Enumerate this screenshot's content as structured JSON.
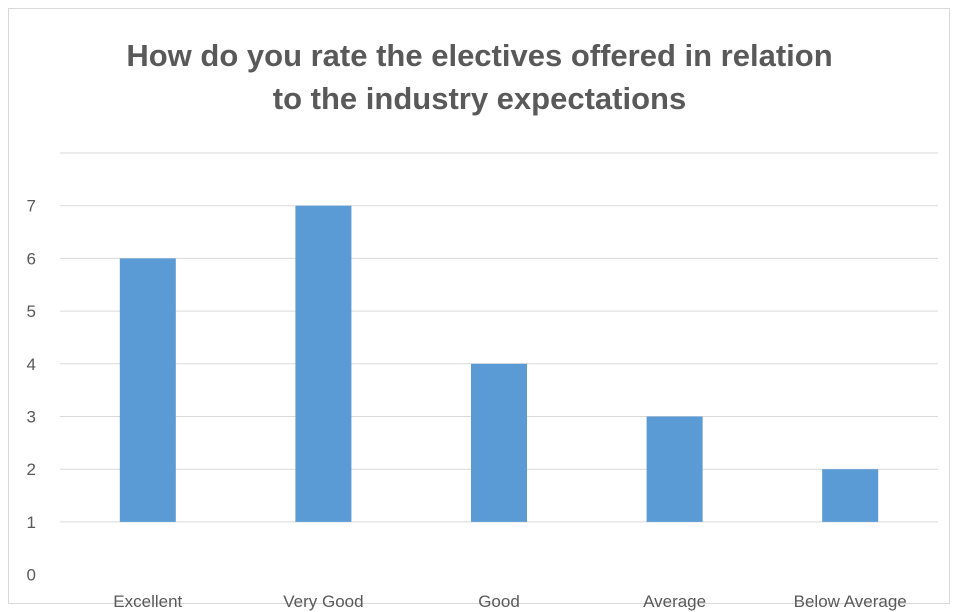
{
  "chart_data": {
    "type": "bar",
    "title": "How do you rate the electives offered in relation to the industry expectations",
    "title_lines": [
      "How do you rate the electives offered in relation",
      "to the industry expectations"
    ],
    "categories": [
      "Excellent",
      "Very Good",
      "Good",
      "Average",
      "Below Average"
    ],
    "values": [
      6,
      7,
      4,
      3,
      2
    ],
    "ylim": [
      0,
      8
    ],
    "yticks": [
      "0",
      "1",
      "2",
      "3",
      "4",
      "5",
      "6",
      "7"
    ],
    "grid": true,
    "legend": "none",
    "bar_color": "#5b9bd5",
    "grid_color": "#d9d9d9"
  }
}
